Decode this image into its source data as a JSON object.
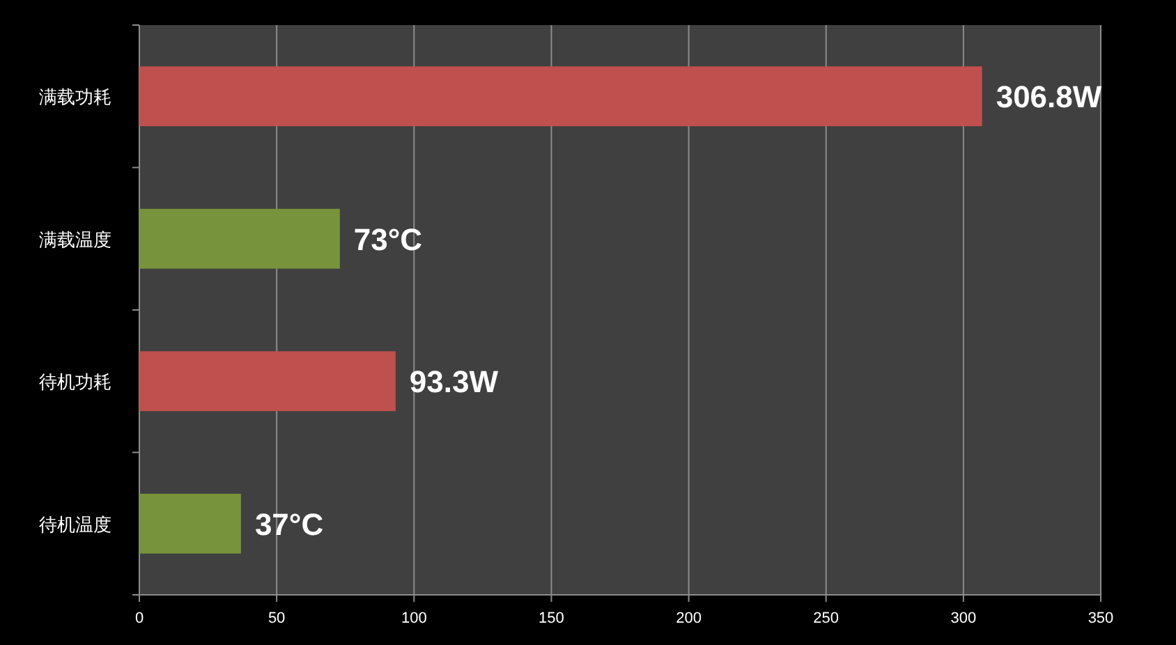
{
  "chart_data": {
    "type": "bar",
    "orientation": "horizontal",
    "categories": [
      "满载功耗",
      "满载温度",
      "待机功耗",
      "待机温度"
    ],
    "values": [
      306.8,
      73,
      93.3,
      37
    ],
    "colors": [
      "#c0504d",
      "#77933c",
      "#c0504d",
      "#77933c"
    ],
    "value_labels": [
      "306.8W",
      "73°C",
      "93.3W",
      "37°C"
    ],
    "xlim": [
      0,
      350
    ],
    "xticks": [
      0,
      50,
      100,
      150,
      200,
      250,
      300,
      350
    ],
    "grid": "x"
  }
}
